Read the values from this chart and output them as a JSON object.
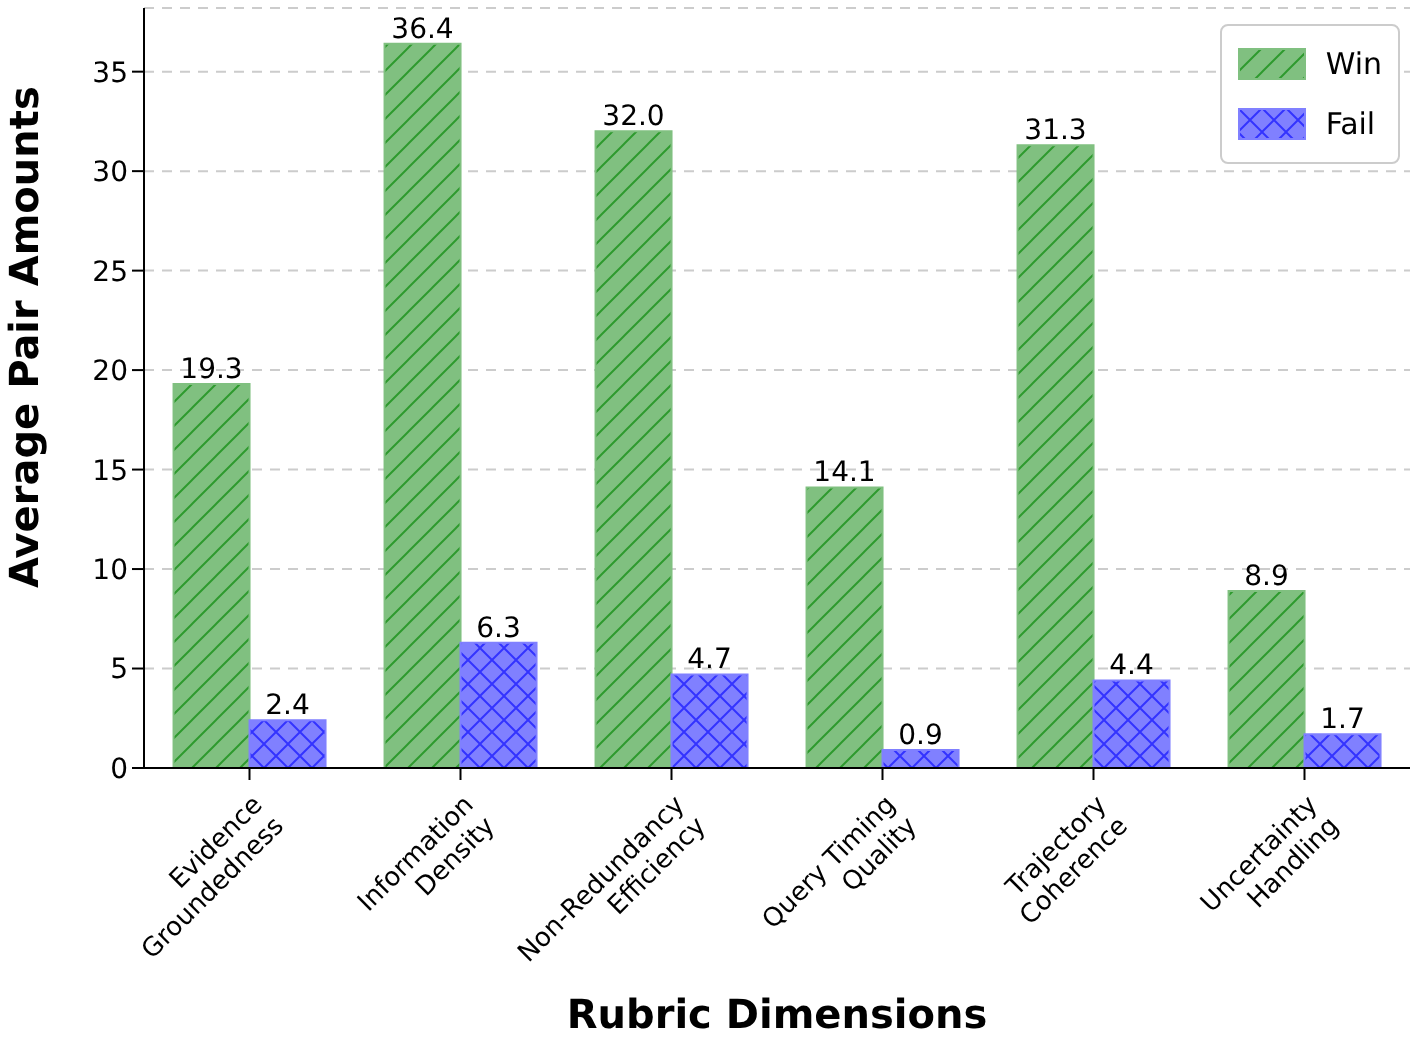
{
  "chart_data": {
    "type": "bar",
    "xlabel": "Rubric Dimensions",
    "ylabel": "Average Pair Amounts",
    "categories": [
      "Evidence\nGroundedness",
      "Information\nDensity",
      "Non-Redundancy\nEfficiency",
      "Query Timing\nQuality",
      "Trajectory\nCoherence",
      "Uncertainty\nHandling"
    ],
    "series": [
      {
        "name": "Win",
        "color": "#80c080",
        "values": [
          19.3,
          36.4,
          32.0,
          14.1,
          31.3,
          8.9
        ],
        "value_labels": [
          "19.3",
          "36.4",
          "32.0",
          "14.1",
          "31.3",
          "8.9"
        ]
      },
      {
        "name": "Fail",
        "color": "#8080ff",
        "values": [
          2.4,
          6.3,
          4.7,
          0.9,
          4.4,
          1.7
        ],
        "value_labels": [
          "2.4",
          "6.3",
          "4.7",
          "0.9",
          "4.4",
          "1.7"
        ]
      }
    ],
    "ylim": [
      0,
      38.2
    ],
    "yticks": [
      0,
      5,
      10,
      15,
      20,
      25,
      30,
      35
    ],
    "grid": "y",
    "legend": "top right"
  }
}
